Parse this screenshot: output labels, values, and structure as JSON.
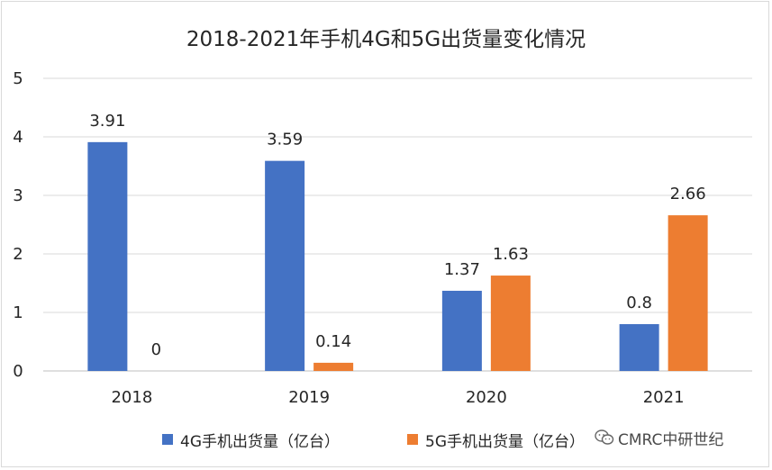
{
  "chart_data": {
    "type": "bar",
    "title": "2018-2021年手机4G和5G出货量变化情况",
    "categories": [
      "2018",
      "2019",
      "2020",
      "2021"
    ],
    "series": [
      {
        "name": "4G手机出货量（亿台）",
        "values": [
          3.91,
          3.59,
          1.37,
          0.8
        ],
        "color": "#4472c4",
        "labels": [
          "3.91",
          "3.59",
          "1.37",
          "0.8"
        ]
      },
      {
        "name": "5G手机出货量（亿台）",
        "values": [
          0,
          0.14,
          1.63,
          2.66
        ],
        "color": "#ed7d31",
        "labels": [
          "0",
          "0.14",
          "1.63",
          "2.66"
        ]
      }
    ],
    "ylim": [
      0,
      5
    ],
    "yticks": [
      "0",
      "1",
      "2",
      "3",
      "4",
      "5"
    ],
    "xlabel": "",
    "ylabel": "",
    "grid": true,
    "legend_position": "bottom"
  },
  "legend": {
    "series1_label": "4G手机出货量（亿台）",
    "series2_label": "5G手机出货量（亿台）"
  },
  "watermark": {
    "text": "CMRC中研世纪"
  }
}
